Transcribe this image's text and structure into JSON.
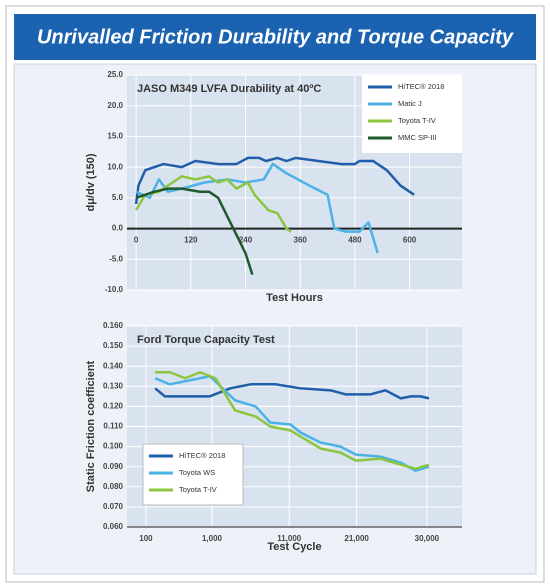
{
  "title": "Unrivalled Friction Durability and Torque Capacity",
  "chart_data": [
    {
      "type": "line",
      "title": "JASO M349 LVFA Durability at 40ºC",
      "y_label": "dμ/dv (150)",
      "x_label": "Test Hours",
      "xlim": [
        -20,
        715
      ],
      "ylim": [
        -10,
        25
      ],
      "xticks": [
        0,
        120,
        240,
        360,
        480,
        600
      ],
      "yticks": [
        {
          "value": 25,
          "label": "25.0"
        },
        {
          "value": 20,
          "label": "20.0"
        },
        {
          "value": 15,
          "label": "15.0"
        },
        {
          "value": 10,
          "label": "10.0"
        },
        {
          "value": 5,
          "label": "5.0"
        },
        {
          "value": 0,
          "label": "0.0"
        },
        {
          "value": -5,
          "label": "-5.0"
        },
        {
          "value": -10,
          "label": "-10.0"
        }
      ],
      "grid": true,
      "x_axis_at_zero": true,
      "legend": "upper right",
      "series": [
        {
          "name": "HiTEC® 2018",
          "color": "#1f5ea8",
          "x": [
            0,
            5,
            20,
            60,
            100,
            130,
            180,
            220,
            245,
            270,
            285,
            310,
            330,
            350,
            400,
            450,
            480,
            490,
            520,
            550,
            580,
            610
          ],
          "values": [
            4,
            7,
            9.5,
            10.5,
            10,
            11,
            10.5,
            10.5,
            11.5,
            11.5,
            11,
            11.5,
            11,
            11.5,
            11,
            10.5,
            10.5,
            11,
            11,
            9.5,
            7,
            5.5
          ]
        },
        {
          "name": "Matic J",
          "color": "#4cb2e6",
          "x": [
            0,
            30,
            50,
            70,
            100,
            150,
            200,
            240,
            280,
            300,
            330,
            380,
            420,
            435,
            460,
            490,
            510,
            530
          ],
          "values": [
            6,
            5,
            8,
            6,
            6.5,
            7.5,
            8,
            7.5,
            8,
            10.5,
            9,
            7,
            5.5,
            0,
            -0.5,
            -0.5,
            1,
            -4
          ]
        },
        {
          "name": "Toyota T-IV",
          "color": "#8cc63f",
          "x": [
            0,
            20,
            50,
            80,
            100,
            130,
            160,
            180,
            200,
            220,
            245,
            260,
            290,
            310,
            330,
            340
          ],
          "values": [
            3,
            5.5,
            6,
            7.5,
            8.5,
            8,
            8.5,
            7.5,
            8,
            6.5,
            7.5,
            5.5,
            3,
            2.5,
            0,
            -0.5
          ]
        },
        {
          "name": "MMC SP-III",
          "color": "#1e5a2d",
          "x": [
            0,
            20,
            40,
            70,
            100,
            140,
            160,
            180,
            200,
            220,
            240,
            255
          ],
          "values": [
            5,
            5.5,
            6,
            6.5,
            6.5,
            6,
            6,
            5,
            2,
            -1,
            -4,
            -7.5
          ]
        }
      ]
    },
    {
      "type": "line",
      "title": "Ford Torque Capacity Test",
      "y_label": "Static Friction coefficient",
      "x_label": "Test Cycle",
      "xlim": [
        -0.27,
        4.5
      ],
      "ylim": [
        0.06,
        0.16
      ],
      "xticks": [
        {
          "value": 0,
          "label": "100"
        },
        {
          "value": 0.94,
          "label": "1,000"
        },
        {
          "value": 2.04,
          "label": "11,000"
        },
        {
          "value": 3.0,
          "label": "21,000"
        },
        {
          "value": 4.0,
          "label": "30,000"
        }
      ],
      "yticks": [
        {
          "value": 0.16,
          "label": "0.160"
        },
        {
          "value": 0.15,
          "label": "0.150"
        },
        {
          "value": 0.14,
          "label": "0.140"
        },
        {
          "value": 0.13,
          "label": "0.130"
        },
        {
          "value": 0.12,
          "label": "0.120"
        },
        {
          "value": 0.11,
          "label": "0.110"
        },
        {
          "value": 0.1,
          "label": "0.100"
        },
        {
          "value": 0.09,
          "label": "0.090"
        },
        {
          "value": 0.08,
          "label": "0.080"
        },
        {
          "value": 0.07,
          "label": "0.070"
        },
        {
          "value": 0.06,
          "label": "0.060"
        }
      ],
      "grid": true,
      "x_axis_at_zero": false,
      "legend": "lower left",
      "series": [
        {
          "name": "HiTEC® 2018",
          "color": "#1f5ea8",
          "x": [
            0.13,
            0.27,
            0.91,
            1.2,
            1.49,
            1.84,
            2.2,
            2.63,
            2.84,
            3.2,
            3.41,
            3.63,
            3.77,
            3.91,
            4.03
          ],
          "values": [
            0.129,
            0.125,
            0.125,
            0.129,
            0.131,
            0.131,
            0.129,
            0.128,
            0.126,
            0.126,
            0.128,
            0.124,
            0.125,
            0.125,
            0.124
          ]
        },
        {
          "name": "Toyota WS",
          "color": "#4cb2e6",
          "x": [
            0.13,
            0.34,
            0.91,
            1.27,
            1.56,
            1.77,
            2.06,
            2.2,
            2.49,
            2.77,
            2.99,
            3.34,
            3.63,
            3.84,
            4.03
          ],
          "values": [
            0.134,
            0.131,
            0.135,
            0.123,
            0.12,
            0.112,
            0.111,
            0.107,
            0.102,
            0.1,
            0.096,
            0.095,
            0.092,
            0.088,
            0.09
          ]
        },
        {
          "name": "Toyota T-IV",
          "color": "#8cc63f",
          "x": [
            0.13,
            0.34,
            0.56,
            0.77,
            0.99,
            1.27,
            1.56,
            1.77,
            2.06,
            2.49,
            2.77,
            2.99,
            3.34,
            3.63,
            3.84,
            4.03
          ],
          "values": [
            0.137,
            0.137,
            0.134,
            0.137,
            0.134,
            0.118,
            0.115,
            0.11,
            0.108,
            0.099,
            0.097,
            0.093,
            0.094,
            0.091,
            0.089,
            0.091
          ]
        }
      ]
    }
  ]
}
